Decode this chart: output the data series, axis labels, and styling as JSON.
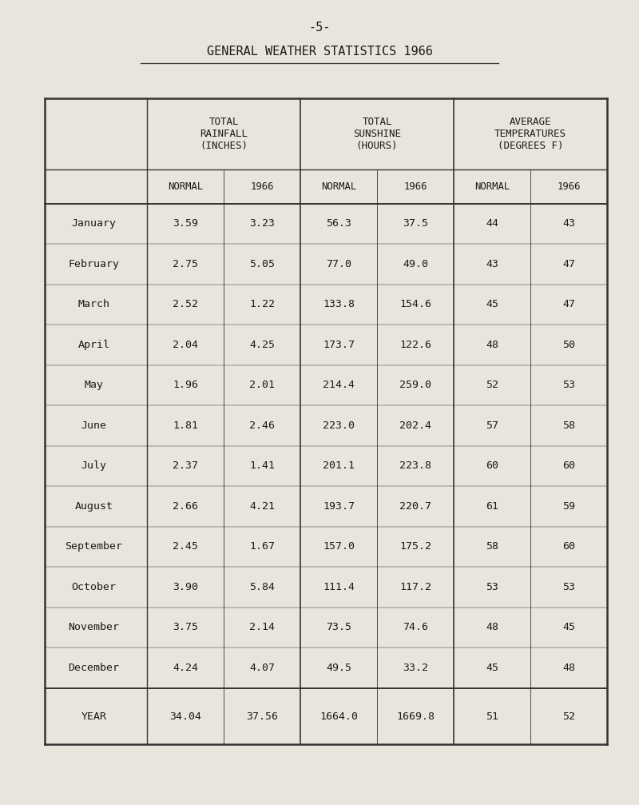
{
  "page_number": "-5-",
  "title": "GENERAL WEATHER STATISTICS 1966",
  "background_color": "#e8e5dc",
  "col_groups": [
    {
      "label": "TOTAL\nRAINFALL\n(INCHES)"
    },
    {
      "label": "TOTAL\nSUNSHINE\n(HOURS)"
    },
    {
      "label": "AVERAGE\nTEMPERATURES\n(DEGREES F)"
    }
  ],
  "months": [
    "January",
    "February",
    "March",
    "April",
    "May",
    "June",
    "July",
    "August",
    "September",
    "October",
    "November",
    "December"
  ],
  "rainfall_normal": [
    3.59,
    2.75,
    2.52,
    2.04,
    1.96,
    1.81,
    2.37,
    2.66,
    2.45,
    3.9,
    3.75,
    4.24
  ],
  "rainfall_1966": [
    3.23,
    5.05,
    1.22,
    4.25,
    2.01,
    2.46,
    1.41,
    4.21,
    1.67,
    5.84,
    2.14,
    4.07
  ],
  "sunshine_normal": [
    56.3,
    77.0,
    133.8,
    173.7,
    214.4,
    223.0,
    201.1,
    193.7,
    157.0,
    111.4,
    73.5,
    49.5
  ],
  "sunshine_1966": [
    37.5,
    49.0,
    154.6,
    122.6,
    259.0,
    202.4,
    223.8,
    220.7,
    175.2,
    117.2,
    74.6,
    33.2
  ],
  "temp_normal": [
    44,
    43,
    45,
    48,
    52,
    57,
    60,
    61,
    58,
    53,
    48,
    45
  ],
  "temp_1966": [
    43,
    47,
    47,
    50,
    53,
    58,
    60,
    59,
    60,
    53,
    45,
    48
  ],
  "year_rainfall_normal": "34.04",
  "year_rainfall_1966": "37.56",
  "year_sunshine_normal": "1664.0",
  "year_sunshine_1966": "1669.8",
  "year_temp_normal": "51",
  "year_temp_1966": "52",
  "subheader_labels": [
    "NORMAL",
    "1966",
    "NORMAL",
    "1966",
    "NORMAL",
    "1966"
  ],
  "text_color": "#1a1a1a",
  "line_color": "#333333",
  "font_family": "monospace"
}
